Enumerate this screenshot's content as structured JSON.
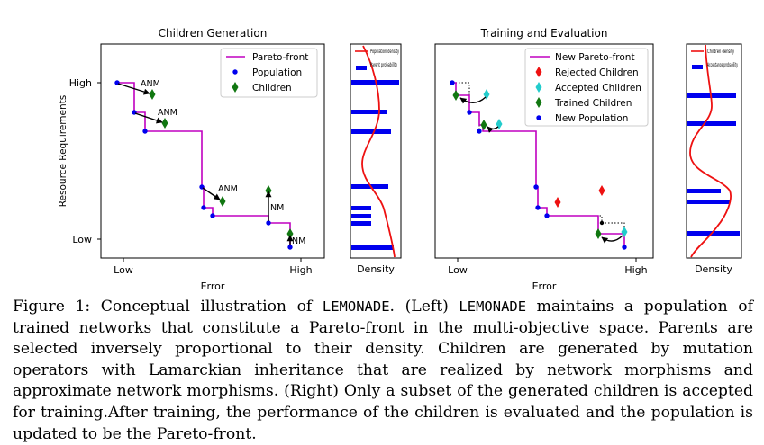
{
  "chart_data": [
    {
      "type": "scatter",
      "title": "Children Generation",
      "xlabel": "Error",
      "ylabel": "Resource Requirements",
      "x_ticks": [
        "Low",
        "High"
      ],
      "y_ticks": [
        "High",
        "Low"
      ],
      "legend": [
        "Pareto-front",
        "Population",
        "Children"
      ],
      "annotations": [
        "ANM",
        "ANM",
        "ANM",
        "NM",
        "NM"
      ]
    },
    {
      "type": "bar",
      "xlabel": "Density",
      "legend": [
        "Population density",
        "Parent probability"
      ]
    },
    {
      "type": "scatter",
      "title": "Training and Evaluation",
      "xlabel": "Error",
      "x_ticks": [
        "Low",
        "High"
      ],
      "legend": [
        "New Pareto-front",
        "Rejected Children",
        "Accepted Children",
        "Trained Children",
        "New Population"
      ]
    },
    {
      "type": "bar",
      "xlabel": "Density",
      "legend": [
        "Children density",
        "Acceptance probability"
      ]
    }
  ],
  "caption": {
    "figure_label": "Figure 1:",
    "t1": " Conceptual illustration of ",
    "name1": "LEMONADE",
    "t2": ". (Left) ",
    "name2": "LEMONADE",
    "t3": " maintains a population of trained networks that constitute a Pareto-front in the multi-objective space. Parents are selected inversely proportional to their density. Children are generated by mutation operators with Lamarckian inheritance that are realized by network morphisms and approximate network morphisms. (Right) Only a subset of the generated children is accepted for training.After training, the performance of the children is evaluated and the population is updated to be the Pareto-front."
  },
  "colors": {
    "pareto": "#c000c0",
    "population": "#0000ee",
    "children": "#117711",
    "rejected": "#ee1111",
    "accepted": "#22cccc",
    "density": "#ee1111"
  }
}
